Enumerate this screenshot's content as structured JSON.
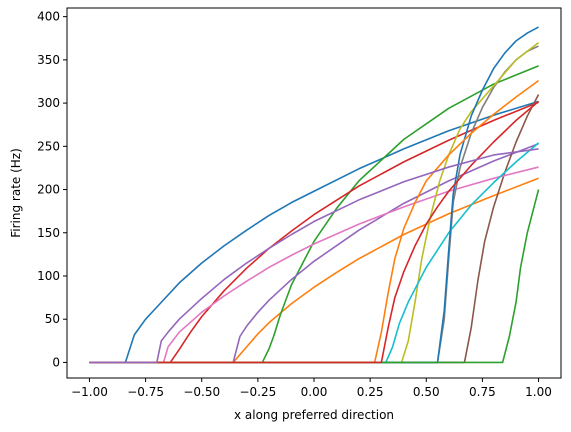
{
  "chart_data": {
    "type": "line",
    "title": "",
    "xlabel": "x along preferred direction",
    "ylabel": "Firing rate (Hz)",
    "xlim": [
      -1.1,
      1.1
    ],
    "ylim": [
      -18,
      410
    ],
    "xticks": [
      -1.0,
      -0.75,
      -0.5,
      -0.25,
      0.0,
      0.25,
      0.5,
      0.75,
      1.0
    ],
    "xtick_labels": [
      "−1.00",
      "−0.75",
      "−0.50",
      "−0.25",
      "0.00",
      "0.25",
      "0.50",
      "0.75",
      "1.00"
    ],
    "yticks": [
      0,
      50,
      100,
      150,
      200,
      250,
      300,
      350,
      400
    ],
    "ytick_labels": [
      "0",
      "50",
      "100",
      "150",
      "200",
      "250",
      "300",
      "350",
      "400"
    ],
    "grid": false,
    "legend": "none",
    "x_range": [
      -1.0,
      1.0
    ],
    "series": [
      {
        "color": "#1f77b4",
        "x": [
          -1.0,
          -0.84,
          -0.8,
          -0.75,
          -0.7,
          -0.6,
          -0.5,
          -0.4,
          -0.3,
          -0.2,
          -0.1,
          0.0,
          0.2,
          0.4,
          0.6,
          0.8,
          1.0
        ],
        "y": [
          0,
          0,
          32,
          50,
          64,
          92,
          115,
          135,
          153,
          170,
          185,
          198,
          224,
          247,
          268,
          286,
          302
        ]
      },
      {
        "color": "#ff7f0e",
        "x": [
          -1.0,
          -0.36,
          -0.3,
          -0.25,
          -0.2,
          -0.1,
          0.0,
          0.1,
          0.2,
          0.4,
          0.6,
          0.8,
          1.0
        ],
        "y": [
          0,
          0,
          18,
          33,
          46,
          68,
          87,
          104,
          120,
          148,
          172,
          193,
          213
        ]
      },
      {
        "color": "#2ca02c",
        "x": [
          -1.0,
          -0.23,
          -0.2,
          -0.18,
          -0.15,
          -0.1,
          0.0,
          0.1,
          0.2,
          0.4,
          0.6,
          0.8,
          1.0
        ],
        "y": [
          0,
          0,
          16,
          30,
          55,
          90,
          140,
          178,
          210,
          258,
          294,
          322,
          343
        ]
      },
      {
        "color": "#d62728",
        "x": [
          -1.0,
          -0.64,
          -0.6,
          -0.55,
          -0.5,
          -0.4,
          -0.3,
          -0.2,
          -0.1,
          0.0,
          0.2,
          0.4,
          0.6,
          0.8,
          1.0
        ],
        "y": [
          0,
          0,
          15,
          35,
          53,
          83,
          109,
          132,
          152,
          171,
          204,
          232,
          257,
          280,
          301
        ]
      },
      {
        "color": "#9467bd",
        "x": [
          -1.0,
          -0.36,
          -0.33,
          -0.3,
          -0.25,
          -0.2,
          -0.1,
          0.0,
          0.2,
          0.4,
          0.6,
          0.8,
          1.0
        ],
        "y": [
          0,
          0,
          30,
          42,
          58,
          72,
          96,
          117,
          153,
          184,
          210,
          233,
          253
        ]
      },
      {
        "color": "#8c564b",
        "x": [
          -1.0,
          0.67,
          0.7,
          0.73,
          0.76,
          0.8,
          0.85,
          0.9,
          0.95,
          1.0
        ],
        "y": [
          0,
          0,
          40,
          95,
          140,
          180,
          220,
          255,
          285,
          310
        ]
      },
      {
        "color": "#e377c2",
        "x": [
          -1.0,
          -0.67,
          -0.65,
          -0.6,
          -0.5,
          -0.4,
          -0.3,
          -0.2,
          -0.1,
          0.0,
          0.2,
          0.4,
          0.6,
          0.8,
          1.0
        ],
        "y": [
          0,
          0,
          18,
          35,
          58,
          77,
          94,
          110,
          124,
          137,
          160,
          180,
          198,
          213,
          226
        ]
      },
      {
        "color": "#7f7f7f",
        "x": [
          -1.0,
          0.55,
          0.58,
          0.6,
          0.62,
          0.65,
          0.7,
          0.75,
          0.8,
          0.85,
          0.9,
          0.95,
          1.0
        ],
        "y": [
          0,
          0,
          50,
          120,
          185,
          225,
          265,
          295,
          318,
          336,
          350,
          360,
          366
        ]
      },
      {
        "color": "#bcbd22",
        "x": [
          -1.0,
          0.39,
          0.42,
          0.45,
          0.48,
          0.52,
          0.56,
          0.6,
          0.65,
          0.7,
          0.8,
          0.9,
          1.0
        ],
        "y": [
          0,
          0,
          25,
          70,
          120,
          170,
          210,
          240,
          270,
          290,
          320,
          350,
          370
        ]
      },
      {
        "color": "#17becf",
        "x": [
          -1.0,
          0.32,
          0.35,
          0.38,
          0.42,
          0.5,
          0.6,
          0.7,
          0.8,
          0.9,
          1.0
        ],
        "y": [
          0,
          0,
          18,
          45,
          70,
          110,
          150,
          182,
          208,
          232,
          254
        ]
      },
      {
        "color": "#1f77b4",
        "x": [
          -1.0,
          0.55,
          0.58,
          0.6,
          0.62,
          0.65,
          0.7,
          0.75,
          0.8,
          0.85,
          0.9,
          0.95,
          1.0
        ],
        "y": [
          0,
          0,
          60,
          130,
          195,
          240,
          285,
          315,
          340,
          358,
          372,
          381,
          388
        ]
      },
      {
        "color": "#ff7f0e",
        "x": [
          -1.0,
          0.27,
          0.3,
          0.33,
          0.36,
          0.4,
          0.45,
          0.5,
          0.6,
          0.7,
          0.8,
          0.9,
          1.0
        ],
        "y": [
          0,
          0,
          35,
          80,
          120,
          155,
          185,
          210,
          240,
          265,
          287,
          307,
          326
        ]
      },
      {
        "color": "#2ca02c",
        "x": [
          -1.0,
          0.84,
          0.87,
          0.9,
          0.92,
          0.95,
          0.98,
          1.0
        ],
        "y": [
          0,
          0,
          30,
          70,
          110,
          150,
          180,
          200
        ]
      },
      {
        "color": "#d62728",
        "x": [
          -1.0,
          0.3,
          0.33,
          0.36,
          0.4,
          0.45,
          0.5,
          0.55,
          0.6,
          0.7,
          0.8,
          0.9,
          1.0
        ],
        "y": [
          0,
          0,
          40,
          75,
          105,
          135,
          160,
          180,
          198,
          228,
          255,
          280,
          302
        ]
      },
      {
        "color": "#9467bd",
        "x": [
          -1.0,
          -0.7,
          -0.68,
          -0.65,
          -0.6,
          -0.5,
          -0.4,
          -0.3,
          -0.2,
          -0.1,
          0.0,
          0.2,
          0.4,
          0.6,
          0.8,
          1.0
        ],
        "y": [
          0,
          0,
          25,
          35,
          50,
          74,
          96,
          115,
          132,
          148,
          163,
          188,
          209,
          226,
          240,
          247
        ]
      },
      {
        "color": "#ff7f0e",
        "x": [
          -1.0,
          0.0,
          0.2,
          0.4,
          0.6,
          0.8,
          1.0
        ],
        "y": [
          0,
          0,
          0,
          0,
          0,
          0,
          0
        ],
        "hidden": true
      }
    ]
  }
}
